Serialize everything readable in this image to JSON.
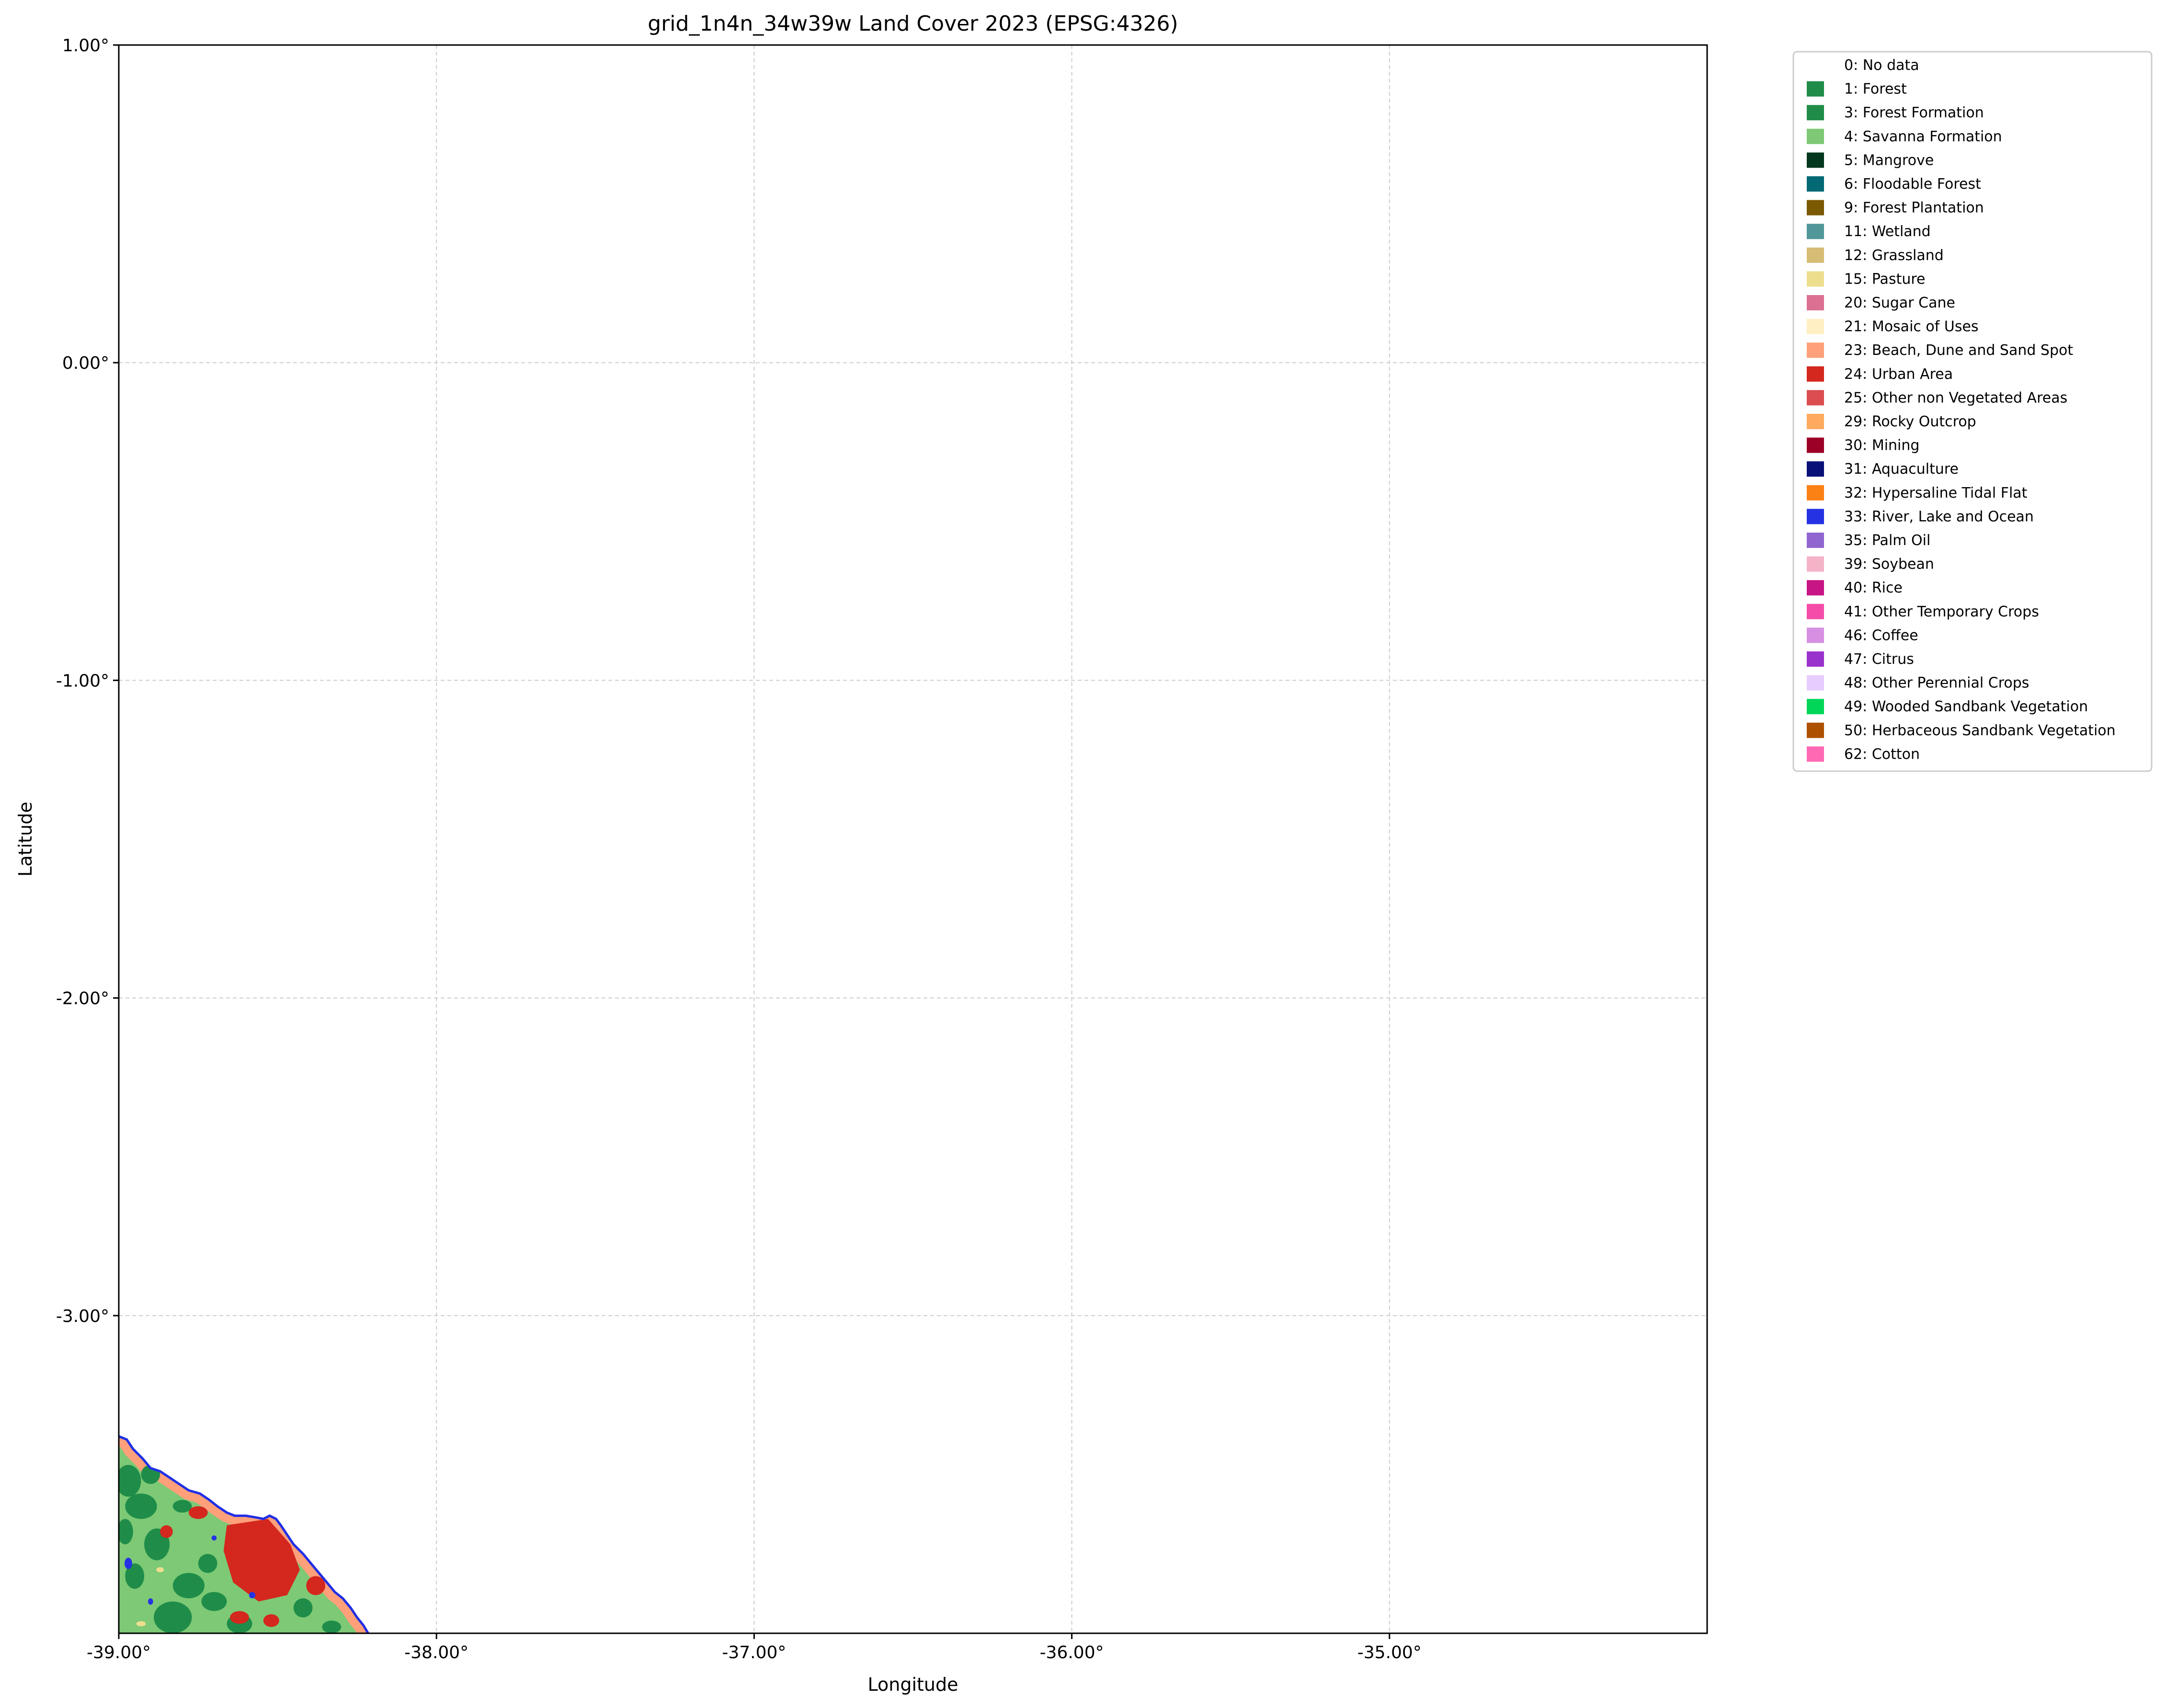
{
  "map": {
    "title": "grid_1n4n_34w39w Land Cover 2023 (EPSG:4326)",
    "xlabel": "Longitude",
    "ylabel": "Latitude",
    "xlim": [
      -39.0,
      -34.0
    ],
    "ylim": [
      -4.0,
      1.0
    ],
    "xticks": [
      {
        "value": -39,
        "label": "-39.00°"
      },
      {
        "value": -38,
        "label": "-38.00°"
      },
      {
        "value": -37,
        "label": "-37.00°"
      },
      {
        "value": -36,
        "label": "-36.00°"
      },
      {
        "value": -35,
        "label": "-35.00°"
      }
    ],
    "yticks": [
      {
        "value": 1,
        "label": "1.00°"
      },
      {
        "value": 0,
        "label": "0.00°"
      },
      {
        "value": -1,
        "label": "-1.00°"
      },
      {
        "value": -2,
        "label": "-2.00°"
      },
      {
        "value": -3,
        "label": "-3.00°"
      }
    ],
    "grid": true,
    "legend_position": "outside-right",
    "coastline_color": "#1f2ee6"
  },
  "legend": [
    {
      "label": "0: No data",
      "color": null
    },
    {
      "label": "1: Forest",
      "color": "#1f8d49"
    },
    {
      "label": "3: Forest Formation",
      "color": "#1f8d49"
    },
    {
      "label": "4: Savanna Formation",
      "color": "#7dc975"
    },
    {
      "label": "5: Mangrove",
      "color": "#04381d"
    },
    {
      "label": "6: Floodable Forest",
      "color": "#026975"
    },
    {
      "label": "9: Forest Plantation",
      "color": "#7a5900"
    },
    {
      "label": "11: Wetland",
      "color": "#519799"
    },
    {
      "label": "12: Grassland",
      "color": "#d6bc74"
    },
    {
      "label": "15: Pasture",
      "color": "#edde8e"
    },
    {
      "label": "20: Sugar Cane",
      "color": "#db7093"
    },
    {
      "label": "21: Mosaic of Uses",
      "color": "#ffefc3"
    },
    {
      "label": "23: Beach, Dune and Sand Spot",
      "color": "#ffa07a"
    },
    {
      "label": "24: Urban Area",
      "color": "#d4271e"
    },
    {
      "label": "25: Other non Vegetated Areas",
      "color": "#db4d4f"
    },
    {
      "label": "29: Rocky Outcrop",
      "color": "#ffaa5f"
    },
    {
      "label": "30: Mining",
      "color": "#9c0027"
    },
    {
      "label": "31: Aquaculture",
      "color": "#091077"
    },
    {
      "label": "32: Hypersaline Tidal Flat",
      "color": "#fc8114"
    },
    {
      "label": "33: River, Lake and Ocean",
      "color": "#2532e4"
    },
    {
      "label": "35: Palm Oil",
      "color": "#9065d0"
    },
    {
      "label": "39: Soybean",
      "color": "#f5b3c8"
    },
    {
      "label": "40: Rice",
      "color": "#c71585"
    },
    {
      "label": "41: Other Temporary Crops",
      "color": "#f54ca9"
    },
    {
      "label": "46: Coffee",
      "color": "#d68fe2"
    },
    {
      "label": "47: Citrus",
      "color": "#9932cc"
    },
    {
      "label": "48: Other Perennial Crops",
      "color": "#e6ccff"
    },
    {
      "label": "49: Wooded Sandbank Vegetation",
      "color": "#02d659"
    },
    {
      "label": "50: Herbaceous Sandbank Vegetation",
      "color": "#ad5100"
    },
    {
      "label": "62: Cotton",
      "color": "#ff69b4"
    }
  ],
  "colors": {
    "grid": "#cccccc",
    "axes": "#000000",
    "savanna": "#7dc975",
    "forest": "#1f8d49",
    "urban": "#d4271e",
    "beach": "#ffa07a",
    "water": "#2532e4",
    "pasture": "#edde8e"
  }
}
